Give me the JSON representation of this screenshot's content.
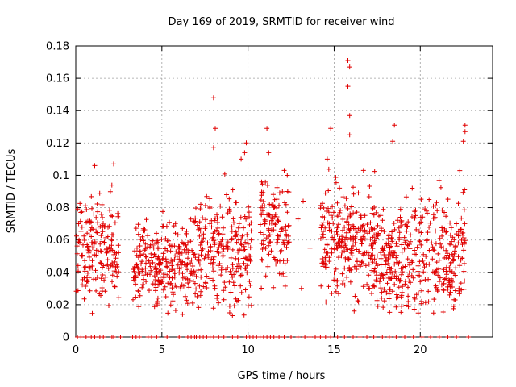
{
  "chart_data": {
    "type": "scatter",
    "title": "Day 169 of 2019, SRMTID for receiver wind",
    "xlabel": "GPS time / hours",
    "ylabel": "SRMTID / TECUs",
    "xlim": [
      0,
      24.2
    ],
    "ylim": [
      0,
      0.18
    ],
    "xticks": [
      0,
      5,
      10,
      15,
      20
    ],
    "yticks": [
      0,
      0.02,
      0.04,
      0.06,
      0.08,
      0.1,
      0.12,
      0.14,
      0.16,
      0.18
    ],
    "ytick_labels": [
      "0",
      "0.02",
      "0.04",
      "0.06",
      "0.08",
      "0.1",
      "0.12",
      "0.14",
      "0.16",
      "0.18"
    ],
    "grid": true,
    "marker": "+",
    "series_color": "#e00000",
    "clusters": [
      {
        "x_start": 0.0,
        "x_end": 2.5,
        "y_mean": 0.055,
        "y_spread": 0.016,
        "count": 180
      },
      {
        "x_start": 3.3,
        "x_end": 6.8,
        "y_mean": 0.045,
        "y_spread": 0.013,
        "count": 260
      },
      {
        "x_start": 6.8,
        "x_end": 10.2,
        "y_mean": 0.052,
        "y_spread": 0.018,
        "count": 240
      },
      {
        "x_start": 10.7,
        "x_end": 12.4,
        "y_mean": 0.066,
        "y_spread": 0.014,
        "count": 120
      },
      {
        "x_start": 14.2,
        "x_end": 17.4,
        "y_mean": 0.06,
        "y_spread": 0.016,
        "count": 260
      },
      {
        "x_start": 17.4,
        "x_end": 19.5,
        "y_mean": 0.047,
        "y_spread": 0.016,
        "count": 170
      },
      {
        "x_start": 19.5,
        "x_end": 22.6,
        "y_mean": 0.052,
        "y_spread": 0.017,
        "count": 220
      }
    ],
    "outliers": [
      {
        "x": 8.0,
        "y": 0.148
      },
      {
        "x": 8.1,
        "y": 0.129
      },
      {
        "x": 8.0,
        "y": 0.117
      },
      {
        "x": 9.9,
        "y": 0.12
      },
      {
        "x": 9.8,
        "y": 0.114
      },
      {
        "x": 9.6,
        "y": 0.11
      },
      {
        "x": 11.1,
        "y": 0.129
      },
      {
        "x": 11.2,
        "y": 0.114
      },
      {
        "x": 12.1,
        "y": 0.103
      },
      {
        "x": 15.8,
        "y": 0.171
      },
      {
        "x": 15.9,
        "y": 0.167
      },
      {
        "x": 15.8,
        "y": 0.155
      },
      {
        "x": 15.9,
        "y": 0.137
      },
      {
        "x": 15.9,
        "y": 0.125
      },
      {
        "x": 14.8,
        "y": 0.129
      },
      {
        "x": 16.7,
        "y": 0.103
      },
      {
        "x": 18.5,
        "y": 0.131
      },
      {
        "x": 18.4,
        "y": 0.121
      },
      {
        "x": 22.6,
        "y": 0.131
      },
      {
        "x": 22.6,
        "y": 0.127
      },
      {
        "x": 22.5,
        "y": 0.121
      },
      {
        "x": 1.1,
        "y": 0.106
      },
      {
        "x": 2.2,
        "y": 0.107
      },
      {
        "x": 14.6,
        "y": 0.11
      },
      {
        "x": 12.3,
        "y": 0.09
      },
      {
        "x": 13.2,
        "y": 0.084
      },
      {
        "x": 13.6,
        "y": 0.055
      },
      {
        "x": 13.1,
        "y": 0.03
      },
      {
        "x": 12.9,
        "y": 0.073
      }
    ],
    "zero_points_x": [
      0.1,
      0.3,
      0.6,
      0.9,
      1.1,
      1.4,
      1.6,
      2.1,
      2.2,
      2.6,
      3.3,
      3.5,
      3.7,
      4.2,
      4.4,
      4.7,
      5.3,
      6.0,
      6.5,
      6.7,
      6.9,
      7.0,
      7.2,
      7.4,
      7.6,
      7.8,
      8.0,
      8.3,
      8.6,
      9.1,
      9.4,
      9.9,
      10.1,
      10.3,
      10.5,
      10.7,
      10.9,
      11.1,
      11.3,
      11.5,
      11.8,
      12.1,
      12.5,
      12.9,
      13.3,
      13.6,
      13.9,
      14.2,
      14.5,
      14.8,
      15.2,
      15.6,
      16.1,
      16.5,
      16.9,
      17.3,
      17.8,
      18.2,
      18.6,
      19.1,
      19.6,
      20.1,
      20.6,
      21.1,
      21.6,
      22.1,
      22.8
    ]
  }
}
